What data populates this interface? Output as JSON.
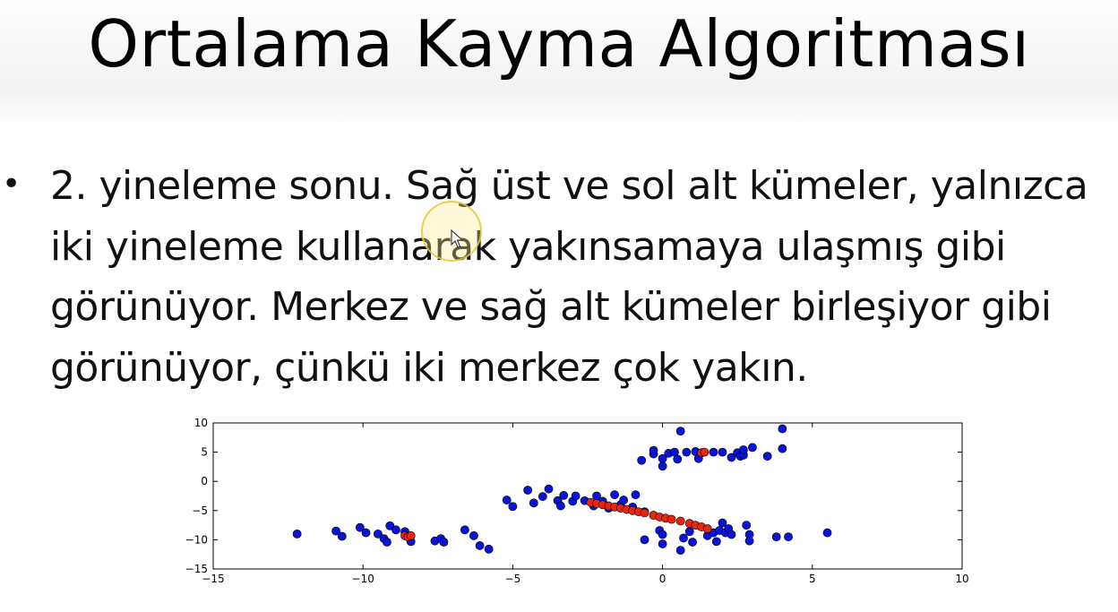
{
  "slide": {
    "title": "Ortalama Kayma Algoritması",
    "bullet_symbol": "•",
    "bullet_lines": [
      "2. yineleme sonu. Sağ üst ve sol alt kümeler, yalnızca",
      "iki yineleme kullanarak yakınsamaya ulaşmış gibi",
      "görünüyor. Merkez ve sağ alt kümeler birleşiyor gibi",
      "görünüyor, çünkü iki merkez çok yakın."
    ]
  },
  "cursor": {
    "icon": "arrow-pointer-icon",
    "highlight_color": "#f5e27a"
  },
  "chart_data": {
    "type": "scatter",
    "xlim": [
      -15,
      10
    ],
    "ylim": [
      -15,
      10
    ],
    "xticks": [
      -15,
      -10,
      -5,
      0,
      5,
      10
    ],
    "yticks": [
      -15,
      -10,
      -5,
      0,
      5,
      10
    ],
    "grid": false,
    "legend": "none",
    "series": [
      {
        "color": "#0a14d8",
        "points": [
          [
            -12.2,
            -9
          ],
          [
            -10.9,
            -8.5
          ],
          [
            -10.7,
            -9.4
          ],
          [
            -10.1,
            -7.9
          ],
          [
            -9.9,
            -8.8
          ],
          [
            -9.5,
            -9
          ],
          [
            -9.3,
            -9.8
          ],
          [
            -9.2,
            -10.4
          ],
          [
            -9.1,
            -7.6
          ],
          [
            -8.9,
            -8.3
          ],
          [
            -8.6,
            -8.6
          ],
          [
            -8.4,
            -10.3
          ],
          [
            -7.6,
            -10.2
          ],
          [
            -7.4,
            -9.8
          ],
          [
            -7.3,
            -10.4
          ],
          [
            -6.6,
            -8.3
          ],
          [
            -6.3,
            -9.3
          ],
          [
            -6.1,
            -11
          ],
          [
            -5.8,
            -11.6
          ],
          [
            -5.2,
            -3.2
          ],
          [
            -5,
            -4.3
          ],
          [
            -4.5,
            -1.5
          ],
          [
            -4.3,
            -3.7
          ],
          [
            -4,
            -2.6
          ],
          [
            -3.8,
            -1.3
          ],
          [
            -3.5,
            -3.3
          ],
          [
            -3.4,
            -4.2
          ],
          [
            -3.3,
            -2.4
          ],
          [
            -3,
            -3.4
          ],
          [
            -2.9,
            -2.5
          ],
          [
            -2.6,
            -3.3
          ],
          [
            -2.3,
            -4.2
          ],
          [
            -2.2,
            -2.5
          ],
          [
            -2,
            -3.4
          ],
          [
            -1.8,
            -4.6
          ],
          [
            -1.6,
            -2.3
          ],
          [
            -1.4,
            -4
          ],
          [
            -1.3,
            -3.2
          ],
          [
            -1,
            -4.4
          ],
          [
            -0.9,
            -2.3
          ],
          [
            -0.6,
            -5.2
          ],
          [
            -0.7,
            3.6
          ],
          [
            -0.6,
            -10
          ],
          [
            -0.3,
            4.7
          ],
          [
            -0.1,
            -8.4
          ],
          [
            0,
            -9.1
          ],
          [
            0,
            -10.7
          ],
          [
            0,
            3.9
          ],
          [
            0,
            2.6
          ],
          [
            0.2,
            4.8
          ],
          [
            0.4,
            5
          ],
          [
            0.5,
            3.8
          ],
          [
            0.6,
            -11.8
          ],
          [
            0.7,
            -9.7
          ],
          [
            0.8,
            5
          ],
          [
            0.9,
            -8.6
          ],
          [
            1,
            -10.4
          ],
          [
            1.1,
            5.1
          ],
          [
            1.2,
            3.9
          ],
          [
            1.5,
            -9.3
          ],
          [
            1.7,
            -8.8
          ],
          [
            1.8,
            -10.3
          ],
          [
            1.9,
            -8.4
          ],
          [
            2,
            -7.1
          ],
          [
            2.1,
            -8.8
          ],
          [
            2.2,
            -8.1
          ],
          [
            2.3,
            -9.1
          ],
          [
            2.5,
            4.9
          ],
          [
            2.6,
            4.3
          ],
          [
            2.7,
            4.5
          ],
          [
            2.8,
            -7.5
          ],
          [
            2.9,
            -9.1
          ],
          [
            2.9,
            -10.2
          ],
          [
            2,
            5
          ],
          [
            2.3,
            4.1
          ],
          [
            2.7,
            5.4
          ],
          [
            3.5,
            4.3
          ],
          [
            3.8,
            -9.5
          ],
          [
            4,
            5.6
          ],
          [
            4,
            9
          ],
          [
            4.2,
            -9.5
          ],
          [
            5.5,
            -8.8
          ],
          [
            0.6,
            8.6
          ],
          [
            3,
            5.8
          ],
          [
            -0.3,
            5.3
          ],
          [
            1.7,
            5
          ]
        ]
      },
      {
        "color": "#e8250f",
        "points": [
          [
            -8.6,
            -9.3
          ],
          [
            -8.5,
            -9.5
          ],
          [
            -8.4,
            -9.3
          ],
          [
            1.3,
            4.9
          ],
          [
            1.4,
            5
          ],
          [
            -2.4,
            -3.6
          ],
          [
            -2.2,
            -3.8
          ],
          [
            -2,
            -4
          ],
          [
            -1.8,
            -4.2
          ],
          [
            -1.6,
            -4.4
          ],
          [
            -1.4,
            -4.6
          ],
          [
            -1.2,
            -4.8
          ],
          [
            -1,
            -5
          ],
          [
            -0.8,
            -5.2
          ],
          [
            -0.6,
            -5.4
          ],
          [
            -0.3,
            -5.8
          ],
          [
            -0.1,
            -6.1
          ],
          [
            0.1,
            -6.3
          ],
          [
            0.3,
            -6.5
          ],
          [
            0.6,
            -6.8
          ],
          [
            0.9,
            -7.2
          ],
          [
            1.1,
            -7.5
          ],
          [
            1.3,
            -7.8
          ],
          [
            1.5,
            -8.1
          ]
        ]
      }
    ]
  }
}
